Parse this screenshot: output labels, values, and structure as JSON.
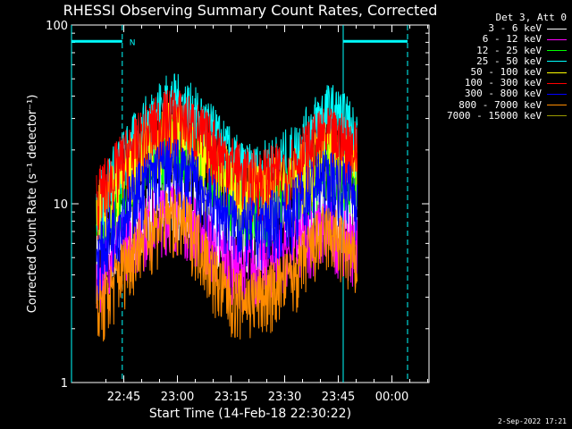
{
  "chart_data": {
    "type": "line",
    "title": "RHESSI Observing Summary Count Rates, Corrected",
    "xlabel": "Start Time (14-Feb-18 22:30:22)",
    "ylabel": "Corrected Count Rate (s⁻¹ detector⁻¹)",
    "y_scale": "log",
    "ylim": [
      1,
      100
    ],
    "y_ticks": [
      "1",
      "10",
      "100"
    ],
    "x_ticks": [
      "22:45",
      "23:00",
      "23:15",
      "23:30",
      "23:45",
      "00:00"
    ],
    "x_tick_minutes": [
      14.63,
      29.63,
      44.63,
      59.63,
      74.63,
      89.63
    ],
    "xlim_minutes": [
      0,
      100
    ],
    "legend_header": "Det 3, Att 0",
    "legend_position": "top-right",
    "series": [
      {
        "name": "3 - 6 keV",
        "color": "#ffffff",
        "x": [
          7,
          10,
          13,
          16,
          18.5,
          22,
          25,
          28,
          31,
          34,
          37,
          40,
          43,
          46,
          49,
          52,
          55,
          57.5,
          62,
          65,
          68,
          71,
          74,
          77,
          80
        ],
        "y": [
          5,
          6,
          7,
          8,
          9,
          10,
          11,
          11.5,
          11,
          10,
          9,
          8,
          7.5,
          7,
          7,
          7,
          7.5,
          8,
          8.5,
          9,
          10,
          11,
          10,
          9,
          8
        ]
      },
      {
        "name": "6 - 12 keV",
        "color": "#ff00ff",
        "x": [
          7,
          10,
          13,
          16,
          18.5,
          22,
          25,
          28,
          31,
          34,
          37,
          40,
          43,
          46,
          49,
          52,
          55,
          57.5,
          62,
          65,
          68,
          71,
          74,
          77,
          80
        ],
        "y": [
          4,
          5,
          6,
          6.5,
          7,
          8,
          9,
          9.5,
          9,
          8,
          7,
          6,
          5,
          4.5,
          4.5,
          4.5,
          5,
          5.5,
          6,
          6.5,
          7,
          7.5,
          7,
          6.5,
          6
        ]
      },
      {
        "name": "12 - 25 keV",
        "color": "#00ff00",
        "x": [
          7,
          10,
          13,
          16,
          18.5,
          22,
          25,
          28,
          31,
          34,
          37,
          40,
          43,
          46,
          49,
          52,
          55,
          57.5,
          62,
          65,
          68,
          71,
          74,
          77,
          80
        ],
        "y": [
          8,
          10,
          12,
          14,
          16,
          19,
          21,
          22,
          21,
          19,
          17,
          15,
          13,
          11,
          10,
          10,
          10.5,
          11,
          12,
          14,
          16,
          18,
          17,
          16,
          15
        ]
      },
      {
        "name": "25 - 50 keV",
        "color": "#00ffff",
        "x": [
          7,
          10,
          13,
          16,
          18.5,
          22,
          25,
          28,
          31,
          34,
          37,
          40,
          43,
          46,
          49,
          52,
          55,
          57.5,
          62,
          65,
          68,
          71,
          74,
          77,
          80
        ],
        "y": [
          10,
          13,
          16,
          20,
          24,
          30,
          35,
          38,
          36,
          32,
          28,
          24,
          20,
          17,
          15,
          15,
          16,
          17,
          19,
          23,
          28,
          33,
          32,
          28,
          24
        ]
      },
      {
        "name": "50 - 100 keV",
        "color": "#ffff00",
        "x": [
          7,
          10,
          13,
          16,
          18.5,
          22,
          25,
          28,
          31,
          34,
          37,
          40,
          43,
          46,
          49,
          52,
          55,
          57.5,
          62,
          65,
          68,
          71,
          74,
          77,
          80
        ],
        "y": [
          9,
          11,
          13,
          16,
          18,
          22,
          25,
          26,
          25,
          22,
          19,
          17,
          15,
          13,
          12,
          12,
          12.5,
          13,
          14,
          16,
          18,
          20,
          19,
          18,
          16
        ]
      },
      {
        "name": "100 - 300 keV",
        "color": "#ff0000",
        "x": [
          7,
          10,
          13,
          16,
          18.5,
          22,
          25,
          28,
          31,
          34,
          37,
          40,
          43,
          46,
          49,
          52,
          55,
          57.5,
          62,
          65,
          68,
          71,
          74,
          77,
          80
        ],
        "y": [
          11,
          13,
          16,
          19,
          22,
          26,
          29,
          31,
          30,
          27,
          24,
          21,
          18,
          16,
          14,
          14,
          14.5,
          15,
          17,
          19,
          22,
          24,
          23,
          22,
          20
        ]
      },
      {
        "name": "300 - 800 keV",
        "color": "#0000ff",
        "x": [
          7,
          10,
          13,
          16,
          18.5,
          22,
          25,
          28,
          31,
          34,
          37,
          40,
          43,
          46,
          49,
          52,
          55,
          57.5,
          62,
          65,
          68,
          71,
          74,
          77,
          80
        ],
        "y": [
          5,
          6.5,
          8,
          10,
          12,
          14,
          16,
          16.5,
          15.5,
          14,
          12,
          10,
          9,
          8,
          7.5,
          7.5,
          8,
          8.5,
          9.5,
          11,
          13,
          14,
          13.5,
          12.5,
          11
        ]
      },
      {
        "name": "800 - 7000 keV",
        "color": "#ff8c00",
        "x": [
          7,
          10,
          13,
          16,
          18.5,
          22,
          25,
          28,
          31,
          34,
          37,
          40,
          43,
          46,
          49,
          52,
          55,
          57.5,
          62,
          65,
          68,
          71,
          74,
          77,
          80
        ],
        "y": [
          2.5,
          3,
          4,
          5,
          6,
          7,
          8,
          8.5,
          8,
          7,
          5.5,
          4,
          3.2,
          3,
          3,
          3,
          3.2,
          3.5,
          4,
          5,
          6,
          7,
          6.5,
          5.5,
          4.5
        ]
      },
      {
        "name": "7000 - 15000 keV",
        "color": "#999900",
        "x": [],
        "y": []
      }
    ],
    "attenuator_bars": [
      {
        "x_start": 0,
        "x_end": 14.2,
        "y": 81,
        "label": "N"
      },
      {
        "x_start": 76,
        "x_end": 94,
        "y": 81,
        "label": ""
      }
    ],
    "vertical_markers": [
      {
        "x": 0,
        "style": "solid"
      },
      {
        "x": 14.2,
        "style": "dashed"
      },
      {
        "x": 76,
        "style": "solid"
      },
      {
        "x": 94,
        "style": "dashed"
      }
    ]
  },
  "footer_date": "2-Sep-2022 17:21"
}
